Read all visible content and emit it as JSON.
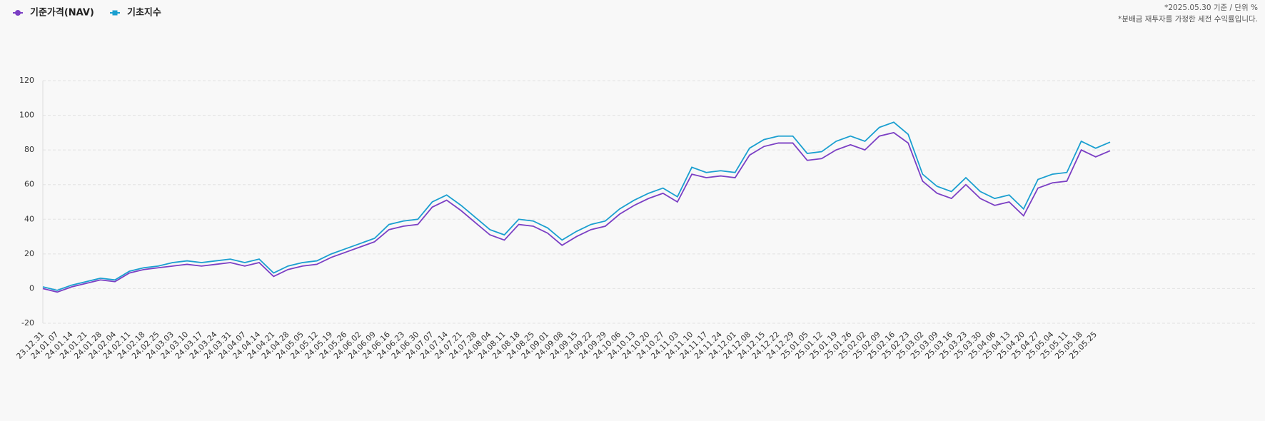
{
  "chart_data": {
    "type": "line",
    "notes": [
      "*2025.05.30 기준 / 단위 %",
      "*분배금 재투자를 가정한 세전 수익률입니다."
    ],
    "categories": [
      "23.12.31",
      "24.01.07",
      "24.01.14",
      "24.01.21",
      "24.01.28",
      "24.02.04",
      "24.02.11",
      "24.02.18",
      "24.02.25",
      "24.03.03",
      "24.03.10",
      "24.03.17",
      "24.03.24",
      "24.03.31",
      "24.04.07",
      "24.04.14",
      "24.04.21",
      "24.04.28",
      "24.05.05",
      "24.05.12",
      "24.05.19",
      "24.05.26",
      "24.06.02",
      "24.06.09",
      "24.06.16",
      "24.06.23",
      "24.06.30",
      "24.07.07",
      "24.07.14",
      "24.07.21",
      "24.07.28",
      "24.08.04",
      "24.08.11",
      "24.08.18",
      "24.08.25",
      "24.09.01",
      "24.09.08",
      "24.09.15",
      "24.09.22",
      "24.09.29",
      "24.10.06",
      "24.10.13",
      "24.10.20",
      "24.10.27",
      "24.11.03",
      "24.11.10",
      "24.11.17",
      "24.11.24",
      "24.12.01",
      "24.12.08",
      "24.12.15",
      "24.12.22",
      "24.12.29",
      "25.01.05",
      "25.01.12",
      "25.01.19",
      "25.01.26",
      "25.02.02",
      "25.02.09",
      "25.02.16",
      "25.02.23",
      "25.03.02",
      "25.03.09",
      "25.03.16",
      "25.03.23",
      "25.03.30",
      "25.04.06",
      "25.04.13",
      "25.04.20",
      "25.04.27",
      "25.05.04",
      "25.05.11",
      "25.05.18",
      "25.05.25",
      null
    ],
    "series": [
      {
        "name": "기준가격(NAV)",
        "color": "#7b3fc4",
        "values": [
          0,
          -2,
          1,
          3,
          5,
          4,
          9,
          11,
          12,
          13,
          14,
          13,
          14,
          15,
          13,
          15,
          7,
          11,
          13,
          14,
          18,
          21,
          24,
          27,
          34,
          36,
          37,
          47,
          51,
          45,
          38,
          31,
          28,
          37,
          36,
          32,
          25,
          30,
          34,
          36,
          43,
          48,
          52,
          55,
          50,
          66,
          64,
          65,
          64,
          77,
          82,
          84,
          84,
          74,
          75,
          80,
          83,
          80,
          88,
          90,
          84,
          62,
          55,
          52,
          60,
          52,
          48,
          50,
          42,
          58,
          61,
          62,
          80,
          76,
          79.5
        ]
      },
      {
        "name": "기초지수",
        "color": "#1a9fd0",
        "values": [
          1,
          -1,
          2,
          4,
          6,
          5,
          10,
          12,
          13,
          15,
          16,
          15,
          16,
          17,
          15,
          17,
          9,
          13,
          15,
          16,
          20,
          23,
          26,
          29,
          37,
          39,
          40,
          50,
          54,
          48,
          41,
          34,
          31,
          40,
          39,
          35,
          28,
          33,
          37,
          39,
          46,
          51,
          55,
          58,
          53,
          70,
          67,
          68,
          67,
          81,
          86,
          88,
          88,
          78,
          79,
          85,
          88,
          85,
          93,
          96,
          89,
          66,
          59,
          56,
          64,
          56,
          52,
          54,
          46,
          63,
          66,
          67,
          85,
          81,
          84.5
        ]
      }
    ],
    "ylim": [
      -20,
      120
    ],
    "yticks": [
      -20,
      0,
      20,
      40,
      60,
      80,
      100,
      120
    ],
    "grid": true
  }
}
